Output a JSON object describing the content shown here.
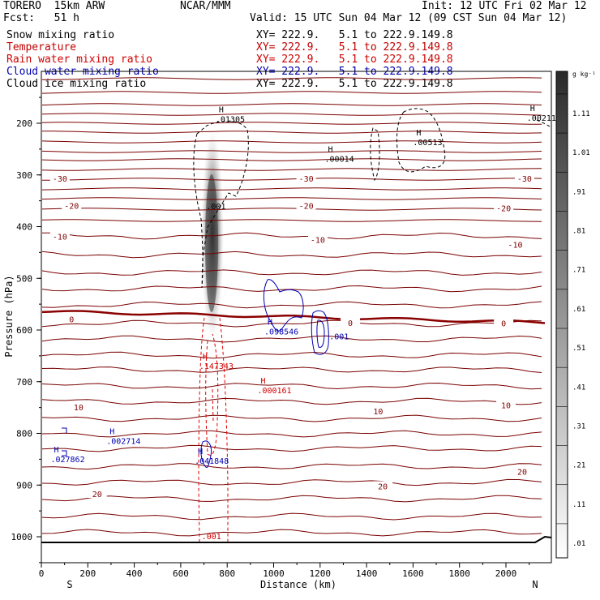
{
  "header": {
    "model": "TORERO  15km ARW",
    "center": "NCAR/MMM",
    "init": "Init: 12 UTC Fri 02 Mar 12",
    "fcst": "Fcst:   51 h",
    "valid": "Valid: 15 UTC Sun 04 Mar 12 (09 CST Sun 04 Mar 12)"
  },
  "legend": [
    {
      "field": "Snow mixing ratio",
      "xy": "XY= 222.9.   5.1 to 222.9.149.8",
      "color": "#000000"
    },
    {
      "field": "Temperature",
      "xy": "XY= 222.9.   5.1 to 222.9.149.8",
      "color": "#c00000"
    },
    {
      "field": "Rain water mixing ratio",
      "xy": "XY= 222.9.   5.1 to 222.9.149.8",
      "color": "#d00000"
    },
    {
      "field": "Cloud water mixing ratio",
      "xy": "XY= 222.9.   5.1 to 222.9.149.8",
      "color": "#0000b0"
    },
    {
      "field": "Cloud ice mixing ratio",
      "xy": "XY= 222.9.   5.1 to 222.9.149.8",
      "color": "#000000"
    }
  ],
  "chart_data": {
    "type": "cross-section",
    "xlabel": "Distance (km)",
    "ylabel": "Pressure (hPa)",
    "x_ticks": [
      0,
      200,
      400,
      600,
      800,
      1000,
      1200,
      1400,
      1600,
      1800,
      2000
    ],
    "y_ticks": [
      200,
      300,
      400,
      500,
      600,
      700,
      800,
      900,
      1000
    ],
    "xlim": [
      0,
      2200
    ],
    "ylim": [
      1050,
      100
    ],
    "endpoints": {
      "left": "S",
      "right": "N"
    },
    "colorbar": {
      "units": "g kg⁻¹",
      "labels": [
        "1.11",
        "1.01",
        ".91",
        ".81",
        ".71",
        ".61",
        ".51",
        ".41",
        ".31",
        ".21",
        ".11",
        ".01"
      ]
    },
    "temperature_labels": [
      {
        "text": "-30",
        "x": 80,
        "p": 310
      },
      {
        "text": "-30",
        "x": 1140,
        "p": 310
      },
      {
        "text": "-30",
        "x": 2080,
        "p": 310
      },
      {
        "text": "-20",
        "x": 130,
        "p": 362
      },
      {
        "text": "-20",
        "x": 1140,
        "p": 362
      },
      {
        "text": "-20",
        "x": 1990,
        "p": 367
      },
      {
        "text": "-10",
        "x": 80,
        "p": 422
      },
      {
        "text": "-10",
        "x": 1190,
        "p": 428
      },
      {
        "text": "-10",
        "x": 2040,
        "p": 438
      },
      {
        "text": "0",
        "x": 130,
        "p": 582
      },
      {
        "text": "0",
        "x": 1330,
        "p": 589
      },
      {
        "text": "0",
        "x": 1990,
        "p": 590
      },
      {
        "text": "10",
        "x": 160,
        "p": 752
      },
      {
        "text": "10",
        "x": 1450,
        "p": 760
      },
      {
        "text": "10",
        "x": 2000,
        "p": 748
      },
      {
        "text": "20",
        "x": 240,
        "p": 920
      },
      {
        "text": "20",
        "x": 1470,
        "p": 905
      },
      {
        "text": "20",
        "x": 2070,
        "p": 877
      }
    ],
    "maxima": [
      {
        "label": "H",
        "value": ".01305",
        "x": 750,
        "p": 185,
        "field": "snow"
      },
      {
        "label": "H",
        "value": ".00014",
        "x": 1220,
        "p": 262,
        "field": "snow"
      },
      {
        "label": "H",
        "value": ".00513",
        "x": 1600,
        "p": 230,
        "field": "snow"
      },
      {
        "label": "H",
        "value": ".00211",
        "x": 2090,
        "p": 183,
        "field": "snow"
      },
      {
        "label": "H",
        "value": ".147343",
        "x": 680,
        "p": 663,
        "field": "rain"
      },
      {
        "label": "H",
        "value": ".000161",
        "x": 930,
        "p": 710,
        "field": "rain"
      },
      {
        "label": "H",
        "value": ".098546",
        "x": 960,
        "p": 596,
        "field": "cloud_water"
      },
      {
        "label": "H",
        "value": ".002714",
        "x": 280,
        "p": 808,
        "field": "cloud_water"
      },
      {
        "label": "H",
        "value": ".027862",
        "x": 40,
        "p": 843,
        "field": "cloud_water"
      },
      {
        "label": "H",
        "value": ".041848",
        "x": 660,
        "p": 846,
        "field": "cloud_water"
      }
    ],
    "contour_labels": [
      {
        "text": ".001",
        "x": 710,
        "p": 366,
        "field": "snow"
      },
      {
        "text": ".001",
        "x": 1240,
        "p": 618,
        "field": "cloud_water"
      },
      {
        "text": ".001",
        "x": 690,
        "p": 1005,
        "field": "rain"
      }
    ]
  }
}
